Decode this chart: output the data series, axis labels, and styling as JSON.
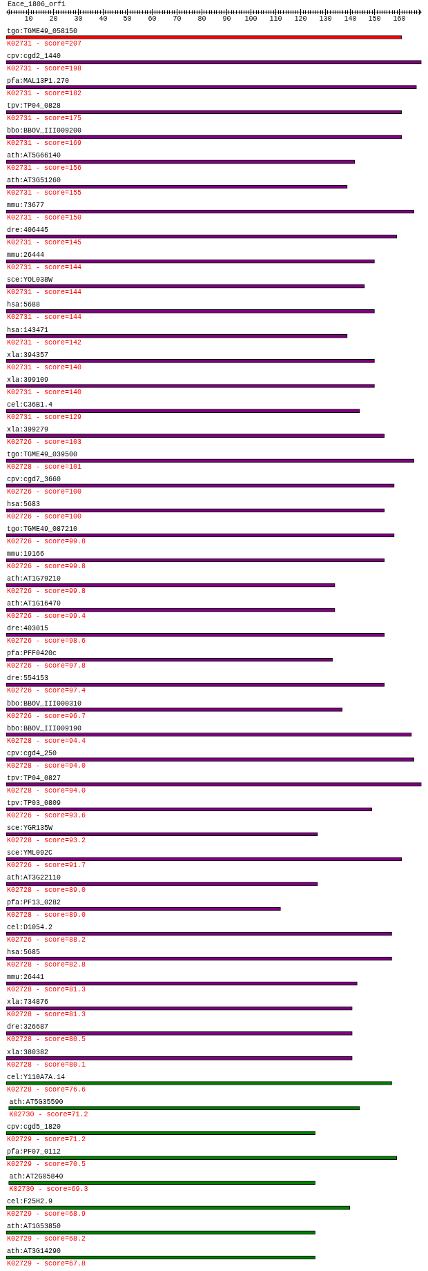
{
  "chart_data": {
    "type": "bar",
    "orientation": "horizontal",
    "title": "Eace_1806_orf1",
    "categories": [
      "tgo:TGME49_058150",
      "cpv:cgd2_1440",
      "pfa:MAL13P1.270",
      "tpv:TP04_0828",
      "bbo:BBOV_III009200",
      "ath:AT5G66140",
      "ath:AT3G51260",
      "mmu:73677",
      "dre:406445",
      "mmu:26444",
      "sce:YOL038W",
      "hsa:5688",
      "hsa:143471",
      "xla:394357",
      "xla:399109",
      "cel:C36B1.4",
      "xla:399279",
      "tgo:TGME49_039500",
      "cpv:cgd7_3660",
      "hsa:5683",
      "tgo:TGME49_087210",
      "mmu:19166",
      "ath:AT1G79210",
      "ath:AT1G16470",
      "dre:403015",
      "pfa:PFF0420c",
      "dre:554153",
      "bbo:BBOV_III000310",
      "bbo:BBOV_III009190",
      "cpv:cgd4_250",
      "tpv:TP04_0827",
      "tpv:TP03_0809",
      "sce:YGR135W",
      "sce:YML092C",
      "ath:AT3G22110",
      "pfa:PF13_0282",
      "cel:D1054.2",
      "hsa:5685",
      "mmu:26441",
      "xla:734876",
      "dre:326687",
      "xla:380382",
      "cel:Y110A7A.14",
      "ath:AT5G35590",
      "cpv:cgd5_1820",
      "pfa:PF07_0112",
      "ath:AT2G05840",
      "cel:F25H2.9",
      "ath:AT1G53850",
      "ath:AT3G14290"
    ],
    "base": [
      1,
      1,
      1,
      1,
      1,
      1,
      1,
      1,
      1,
      1,
      1,
      1,
      1,
      1,
      1,
      1,
      1,
      1,
      1,
      1,
      1,
      1,
      1,
      1,
      1,
      1,
      1,
      1,
      1,
      1,
      1,
      1,
      1,
      1,
      1,
      1,
      1,
      1,
      1,
      1,
      1,
      1,
      1,
      2,
      1,
      1,
      2,
      1,
      1,
      1
    ],
    "values": [
      160,
      168,
      166,
      160,
      160,
      141,
      138,
      165,
      158,
      149,
      145,
      149,
      138,
      149,
      149,
      143,
      153,
      165,
      157,
      153,
      157,
      153,
      133,
      133,
      153,
      132,
      153,
      136,
      164,
      165,
      168,
      148,
      126,
      160,
      126,
      111,
      156,
      156,
      142,
      140,
      140,
      140,
      156,
      142,
      125,
      158,
      124,
      139,
      125,
      125
    ],
    "colors": [
      "#ff0000",
      "#800080",
      "#800080",
      "#800080",
      "#800080",
      "#800080",
      "#800080",
      "#800080",
      "#800080",
      "#800080",
      "#800080",
      "#800080",
      "#800080",
      "#800080",
      "#800080",
      "#800080",
      "#800080",
      "#800080",
      "#800080",
      "#800080",
      "#800080",
      "#800080",
      "#800080",
      "#800080",
      "#800080",
      "#800080",
      "#800080",
      "#800080",
      "#800080",
      "#800080",
      "#800080",
      "#800080",
      "#800080",
      "#800080",
      "#800080",
      "#800080",
      "#800080",
      "#800080",
      "#800080",
      "#800080",
      "#800080",
      "#800080",
      "#008000",
      "#008000",
      "#008000",
      "#008000",
      "#008000",
      "#008000",
      "#008000",
      "#008000"
    ],
    "value_labels": [
      "K02731 - score=207",
      "K02731 - score=198",
      "K02731 - score=182",
      "K02731 - score=175",
      "K02731 - score=169",
      "K02731 - score=156",
      "K02731 - score=155",
      "K02731 - score=150",
      "K02731 - score=145",
      "K02731 - score=144",
      "K02731 - score=144",
      "K02731 - score=144",
      "K02731 - score=142",
      "K02731 - score=140",
      "K02731 - score=140",
      "K02731 - score=129",
      "K02726 - score=103",
      "K02728 - score=101",
      "K02726 - score=100",
      "K02726 - score=100",
      "K02726 - score=99.8",
      "K02726 - score=99.8",
      "K02726 - score=99.8",
      "K02726 - score=99.4",
      "K02726 - score=98.6",
      "K02726 - score=97.8",
      "K02726 - score=97.4",
      "K02726 - score=96.7",
      "K02728 - score=94.4",
      "K02728 - score=94.0",
      "K02728 - score=94.0",
      "K02726 - score=93.6",
      "K02728 - score=93.2",
      "K02726 - score=91.7",
      "K02728 - score=89.0",
      "K02728 - score=89.0",
      "K02726 - score=88.2",
      "K02728 - score=82.8",
      "K02728 - score=81.3",
      "K02728 - score=81.3",
      "K02728 - score=80.5",
      "K02728 - score=80.1",
      "K02728 - score=76.6",
      "K02730 - score=71.2",
      "K02729 - score=71.2",
      "K02729 - score=70.5",
      "K02730 - score=69.3",
      "K02729 - score=68.9",
      "K02729 - score=68.2",
      "K02729 - score=67.8"
    ],
    "xlim": [
      1,
      169
    ],
    "xticks": [
      {
        "value": 2,
        "label": null
      },
      {
        "value": 3,
        "label": null
      },
      {
        "value": 4,
        "label": null
      },
      {
        "value": 5,
        "label": null
      },
      {
        "value": 6,
        "label": null
      },
      {
        "value": 7,
        "label": null
      },
      {
        "value": 8,
        "label": null
      },
      {
        "value": 9,
        "label": null
      },
      10,
      {
        "value": 11,
        "label": null
      },
      {
        "value": 12,
        "label": null
      },
      {
        "value": 13,
        "label": null
      },
      {
        "value": 14,
        "label": null
      },
      {
        "value": 15,
        "label": null
      },
      {
        "value": 16,
        "label": null
      },
      {
        "value": 17,
        "label": null
      },
      {
        "value": 18,
        "label": null
      },
      {
        "value": 19,
        "label": null
      },
      20,
      {
        "value": 21,
        "label": null
      },
      {
        "value": 22,
        "label": null
      },
      {
        "value": 23,
        "label": null
      },
      {
        "value": 24,
        "label": null
      },
      {
        "value": 25,
        "label": null
      },
      {
        "value": 26,
        "label": null
      },
      {
        "value": 27,
        "label": null
      },
      {
        "value": 28,
        "label": null
      },
      {
        "value": 29,
        "label": null
      },
      30,
      {
        "value": 31,
        "label": null
      },
      {
        "value": 32,
        "label": null
      },
      {
        "value": 33,
        "label": null
      },
      {
        "value": 34,
        "label": null
      },
      {
        "value": 35,
        "label": null
      },
      {
        "value": 36,
        "label": null
      },
      {
        "value": 37,
        "label": null
      },
      {
        "value": 38,
        "label": null
      },
      {
        "value": 39,
        "label": null
      },
      40,
      {
        "value": 41,
        "label": null
      },
      {
        "value": 42,
        "label": null
      },
      {
        "value": 43,
        "label": null
      },
      {
        "value": 44,
        "label": null
      },
      {
        "value": 45,
        "label": null
      },
      {
        "value": 46,
        "label": null
      },
      {
        "value": 47,
        "label": null
      },
      {
        "value": 48,
        "label": null
      },
      {
        "value": 49,
        "label": null
      },
      50,
      {
        "value": 51,
        "label": null
      },
      {
        "value": 52,
        "label": null
      },
      {
        "value": 53,
        "label": null
      },
      {
        "value": 54,
        "label": null
      },
      {
        "value": 55,
        "label": null
      },
      {
        "value": 56,
        "label": null
      },
      {
        "value": 57,
        "label": null
      },
      {
        "value": 58,
        "label": null
      },
      {
        "value": 59,
        "label": null
      },
      60,
      {
        "value": 61,
        "label": null
      },
      {
        "value": 62,
        "label": null
      },
      {
        "value": 63,
        "label": null
      },
      {
        "value": 64,
        "label": null
      },
      {
        "value": 65,
        "label": null
      },
      {
        "value": 66,
        "label": null
      },
      {
        "value": 67,
        "label": null
      },
      {
        "value": 68,
        "label": null
      },
      {
        "value": 69,
        "label": null
      },
      70,
      {
        "value": 71,
        "label": null
      },
      {
        "value": 72,
        "label": null
      },
      {
        "value": 73,
        "label": null
      },
      {
        "value": 74,
        "label": null
      },
      {
        "value": 75,
        "label": null
      },
      {
        "value": 76,
        "label": null
      },
      {
        "value": 77,
        "label": null
      },
      {
        "value": 78,
        "label": null
      },
      {
        "value": 79,
        "label": null
      },
      80,
      {
        "value": 81,
        "label": null
      },
      {
        "value": 82,
        "label": null
      },
      {
        "value": 83,
        "label": null
      },
      {
        "value": 84,
        "label": null
      },
      {
        "value": 85,
        "label": null
      },
      {
        "value": 86,
        "label": null
      },
      {
        "value": 87,
        "label": null
      },
      {
        "value": 88,
        "label": null
      },
      {
        "value": 89,
        "label": null
      },
      90,
      {
        "value": 91,
        "label": null
      },
      {
        "value": 92,
        "label": null
      },
      {
        "value": 93,
        "label": null
      },
      {
        "value": 94,
        "label": null
      },
      {
        "value": 95,
        "label": null
      },
      {
        "value": 96,
        "label": null
      },
      {
        "value": 97,
        "label": null
      },
      {
        "value": 98,
        "label": null
      },
      {
        "value": 99,
        "label": null
      },
      100,
      {
        "value": 101,
        "label": null
      },
      {
        "value": 102,
        "label": null
      },
      {
        "value": 103,
        "label": null
      },
      {
        "value": 104,
        "label": null
      },
      {
        "value": 105,
        "label": null
      },
      {
        "value": 106,
        "label": null
      },
      {
        "value": 107,
        "label": null
      },
      {
        "value": 108,
        "label": null
      },
      {
        "value": 109,
        "label": null
      },
      110,
      {
        "value": 111,
        "label": null
      },
      {
        "value": 112,
        "label": null
      },
      {
        "value": 113,
        "label": null
      },
      {
        "value": 114,
        "label": null
      },
      {
        "value": 115,
        "label": null
      },
      {
        "value": 116,
        "label": null
      },
      {
        "value": 117,
        "label": null
      },
      {
        "value": 118,
        "label": null
      },
      {
        "value": 119,
        "label": null
      },
      120,
      {
        "value": 121,
        "label": null
      },
      {
        "value": 122,
        "label": null
      },
      {
        "value": 123,
        "label": null
      },
      {
        "value": 124,
        "label": null
      },
      {
        "value": 125,
        "label": null
      },
      {
        "value": 126,
        "label": null
      },
      {
        "value": 127,
        "label": null
      },
      {
        "value": 128,
        "label": null
      },
      {
        "value": 129,
        "label": null
      },
      130,
      {
        "value": 131,
        "label": null
      },
      {
        "value": 132,
        "label": null
      },
      {
        "value": 133,
        "label": null
      },
      {
        "value": 134,
        "label": null
      },
      {
        "value": 135,
        "label": null
      },
      {
        "value": 136,
        "label": null
      },
      {
        "value": 137,
        "label": null
      },
      {
        "value": 138,
        "label": null
      },
      {
        "value": 139,
        "label": null
      },
      140,
      {
        "value": 141,
        "label": null
      },
      {
        "value": 142,
        "label": null
      },
      {
        "value": 143,
        "label": null
      },
      {
        "value": 144,
        "label": null
      },
      {
        "value": 145,
        "label": null
      },
      {
        "value": 146,
        "label": null
      },
      {
        "value": 147,
        "label": null
      },
      {
        "value": 148,
        "label": null
      },
      {
        "value": 149,
        "label": null
      },
      150,
      {
        "value": 151,
        "label": null
      },
      {
        "value": 152,
        "label": null
      },
      {
        "value": 153,
        "label": null
      },
      {
        "value": 154,
        "label": null
      },
      {
        "value": 155,
        "label": null
      },
      {
        "value": 156,
        "label": null
      },
      {
        "value": 157,
        "label": null
      },
      {
        "value": 158,
        "label": null
      },
      {
        "value": 159,
        "label": null
      },
      160,
      {
        "value": 161,
        "label": null
      },
      {
        "value": 162,
        "label": null
      },
      {
        "value": 163,
        "label": null
      },
      {
        "value": 164,
        "label": null
      },
      {
        "value": 165,
        "label": null
      },
      {
        "value": 166,
        "label": null
      },
      {
        "value": 167,
        "label": null
      },
      {
        "value": 168,
        "label": null
      }
    ]
  }
}
